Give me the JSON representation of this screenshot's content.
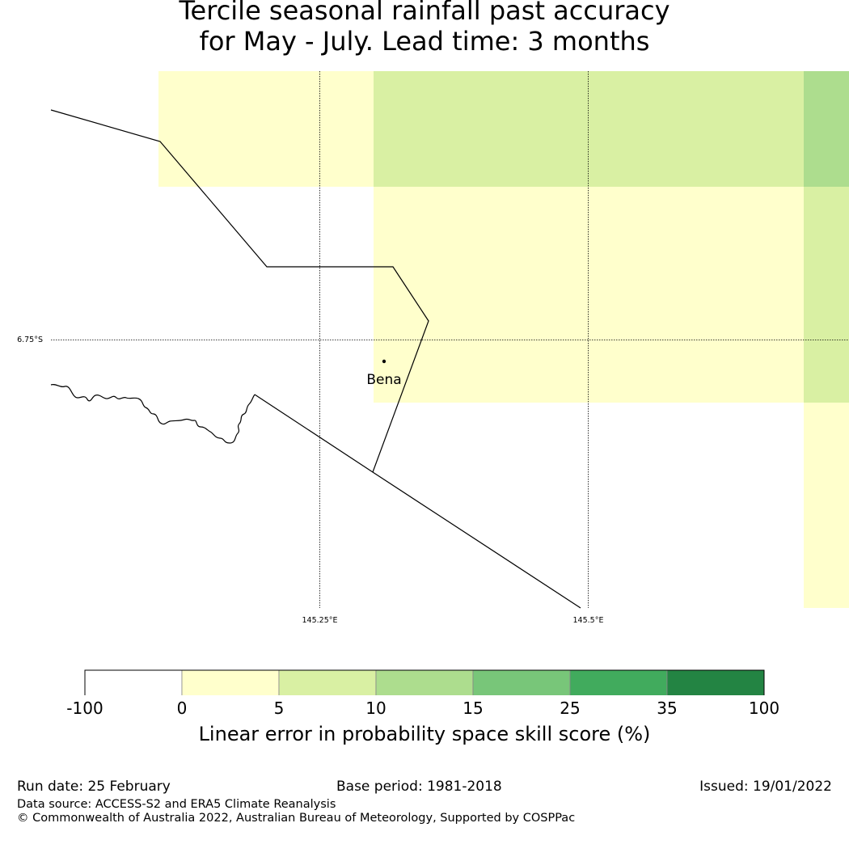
{
  "title": {
    "line1": "Tercile seasonal rainfall past accuracy",
    "line2": "for May - July. Lead time: 3 months"
  },
  "map": {
    "lat_label": "6.75°S",
    "lon_labels": [
      "145.25°E",
      "145.5°E"
    ],
    "place_label": "Bena"
  },
  "colorbar": {
    "ticks": [
      "-100",
      "0",
      "5",
      "10",
      "15",
      "25",
      "35",
      "100"
    ],
    "colors": [
      "#ffffff",
      "#ffffcc",
      "#d9f0a3",
      "#addd8e",
      "#78c679",
      "#41ab5d",
      "#238443"
    ],
    "label": "Linear error in probability space skill score (%)"
  },
  "footer": {
    "run_date": "Run date: 25 February",
    "base_period": "Base period: 1981-2018",
    "issued": "Issued: 19/01/2022",
    "data_source": "Data source: ACCESS-S2 and ERA5 Climate Reanalysis",
    "copyright": "© Commonwealth of Australia 2022, Australian Bureau of Meteorology, Supported by COSPPac"
  }
}
